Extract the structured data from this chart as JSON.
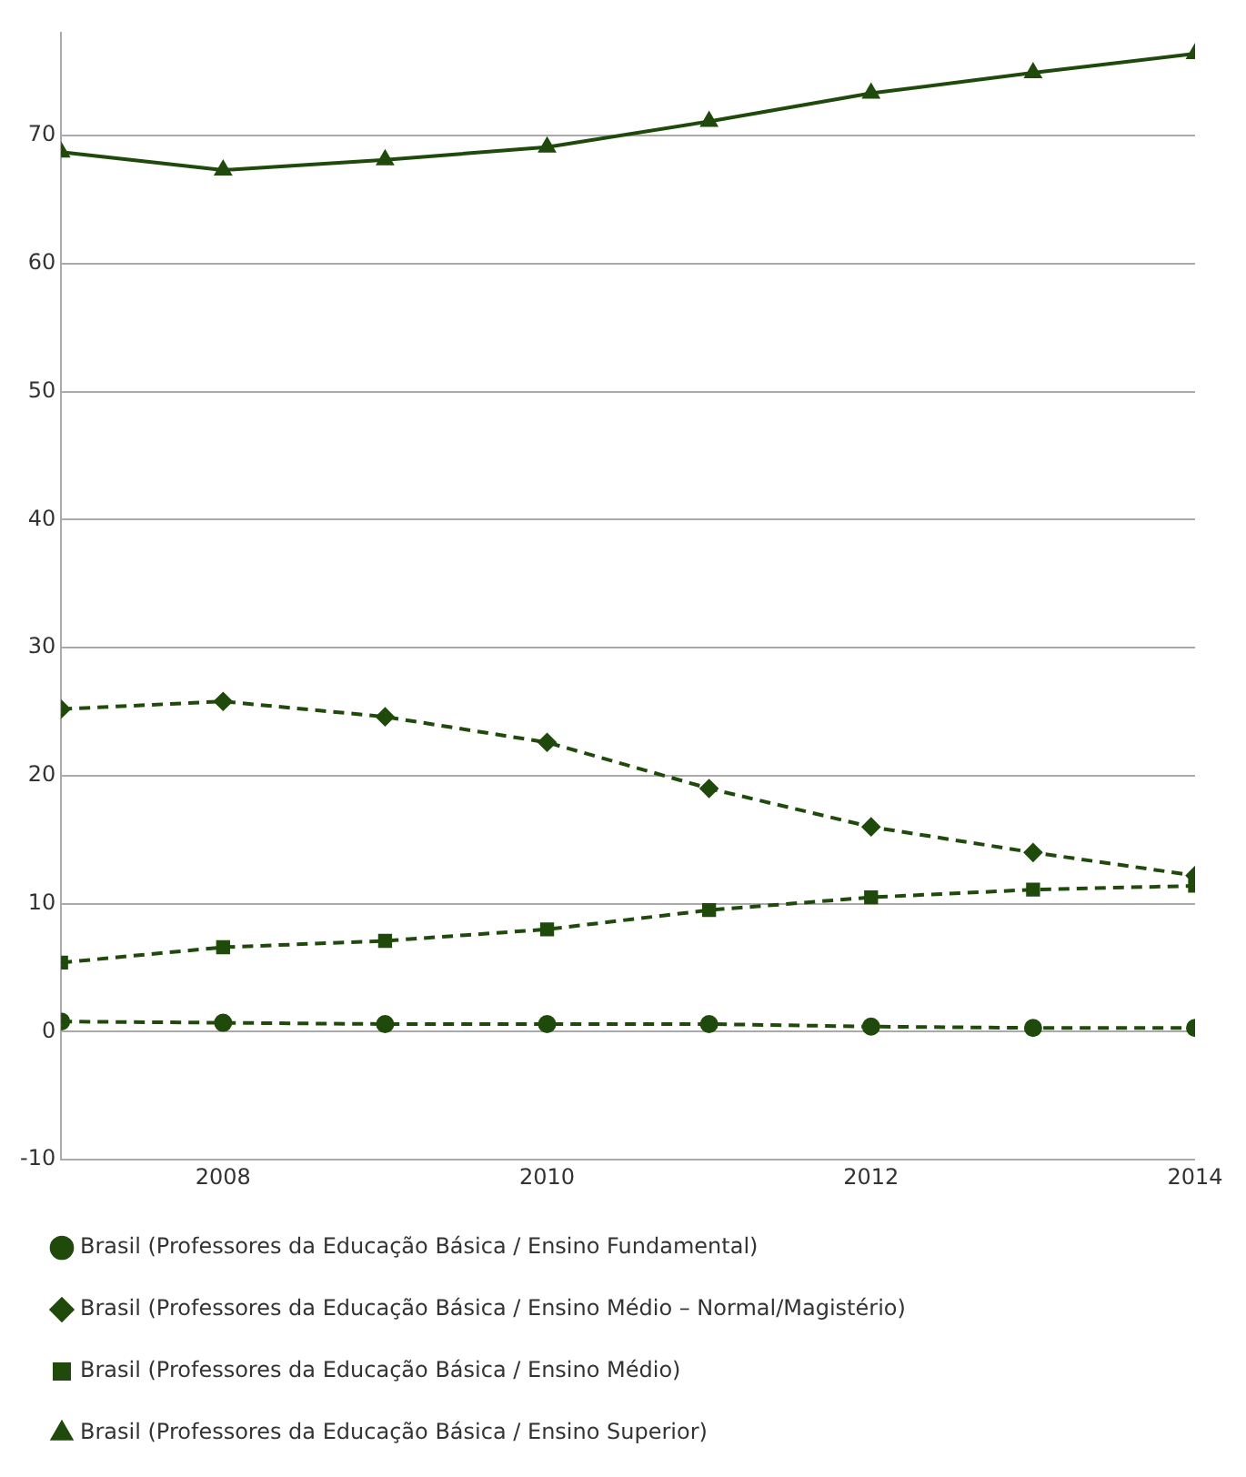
{
  "chart_data": {
    "type": "line",
    "x": [
      2007,
      2008,
      2009,
      2010,
      2011,
      2012,
      2013,
      2014
    ],
    "series": [
      {
        "name": "Brasil (Professores da Educação Básica / Ensino Fundamental)",
        "color": "#1f4a0c",
        "marker": "circle",
        "line_style": "dashed",
        "values": [
          0.8,
          0.7,
          0.6,
          0.6,
          0.6,
          0.4,
          0.3,
          0.3
        ]
      },
      {
        "name": "Brasil (Professores da Educação Básica / Ensino Médio – Normal/Magistério)",
        "color": "#1f4a0c",
        "marker": "diamond",
        "line_style": "dashed",
        "values": [
          25.2,
          25.8,
          24.6,
          22.6,
          19.0,
          16.0,
          14.0,
          12.2
        ]
      },
      {
        "name": "Brasil (Professores da Educação Básica / Ensino Médio)",
        "color": "#1f4a0c",
        "marker": "square",
        "line_style": "dashed",
        "values": [
          5.4,
          6.6,
          7.1,
          8.0,
          9.5,
          10.5,
          11.1,
          11.4
        ]
      },
      {
        "name": "Brasil (Professores da Educação Básica / Ensino Superior)",
        "color": "#1f4a0c",
        "marker": "triangle",
        "line_style": "solid",
        "values": [
          68.7,
          67.3,
          68.1,
          69.1,
          71.1,
          73.3,
          74.9,
          76.4
        ]
      }
    ],
    "xlim": [
      2007,
      2014
    ],
    "xticks": [
      2008,
      2010,
      2012,
      2014
    ],
    "ylim": [
      -10,
      78
    ],
    "yticks": [
      -10,
      0,
      10,
      20,
      30,
      40,
      50,
      60,
      70
    ],
    "grid": "y",
    "legend": "bottom"
  }
}
